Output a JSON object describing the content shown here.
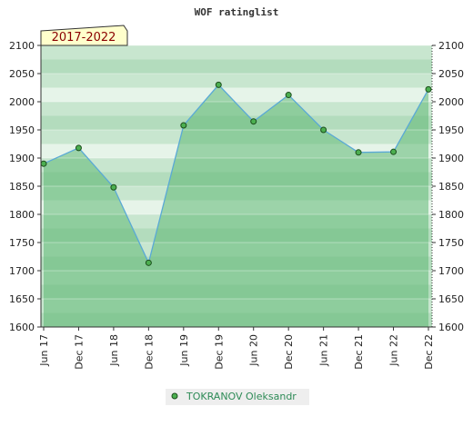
{
  "chart_data": {
    "type": "area",
    "title": "WOF ratinglist",
    "period_label": "2017-2022",
    "xlabel": "",
    "ylabel": "",
    "ylim": [
      1600,
      2100
    ],
    "y_ticks": [
      1600,
      1650,
      1700,
      1750,
      1800,
      1850,
      1900,
      1950,
      2000,
      2050,
      2100
    ],
    "categories": [
      "Jun 17",
      "Dec 17",
      "Jun 18",
      "Dec 18",
      "Jun 19",
      "Dec 19",
      "Jun 20",
      "Dec 20",
      "Jun 21",
      "Dec 21",
      "Jun 22",
      "Dec 22"
    ],
    "series": [
      {
        "name": "TOKRANOV Oleksandr",
        "values": [
          1890,
          1918,
          1848,
          1714,
          1958,
          2030,
          1965,
          2012,
          1950,
          1910,
          1911,
          2022
        ]
      }
    ],
    "grid": true,
    "legend_position": "bottom",
    "colors": {
      "line": "#5aa9d6",
      "marker": "#4caf50",
      "marker_stroke": "#1b4d1b",
      "band_dark": "#9fd3a8",
      "band_light": "#eaf6ec",
      "area_fill": "#7cc48f",
      "period_bg": "#ffffcc"
    }
  }
}
